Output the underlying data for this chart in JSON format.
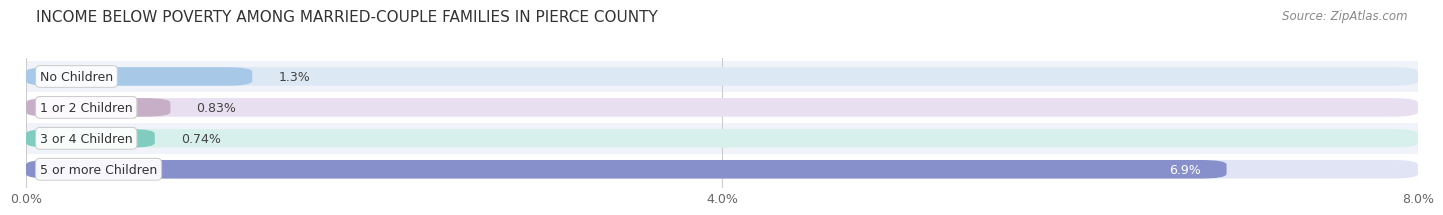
{
  "title": "INCOME BELOW POVERTY AMONG MARRIED-COUPLE FAMILIES IN PIERCE COUNTY",
  "source": "Source: ZipAtlas.com",
  "categories": [
    "No Children",
    "1 or 2 Children",
    "3 or 4 Children",
    "5 or more Children"
  ],
  "values": [
    1.3,
    0.83,
    0.74,
    6.9
  ],
  "labels": [
    "1.3%",
    "0.83%",
    "0.74%",
    "6.9%"
  ],
  "bar_colors": [
    "#a8c8e8",
    "#c8afc8",
    "#80ccbe",
    "#8890cc"
  ],
  "bar_bg_colors": [
    "#dde8f5",
    "#e8dff0",
    "#d8f0ec",
    "#e0e4f5"
  ],
  "xlim": [
    0,
    8.0
  ],
  "xticks": [
    0.0,
    4.0,
    8.0
  ],
  "xticklabels": [
    "0.0%",
    "4.0%",
    "8.0%"
  ],
  "title_fontsize": 11,
  "source_fontsize": 8.5,
  "label_fontsize": 9,
  "tick_fontsize": 9,
  "cat_fontsize": 9,
  "background_color": "#ffffff",
  "bar_height": 0.6,
  "label_color_dark": "#444444",
  "label_color_light": "#ffffff",
  "row_bg_color_odd": "#f0f4fa",
  "row_bg_color_even": "#ffffff"
}
